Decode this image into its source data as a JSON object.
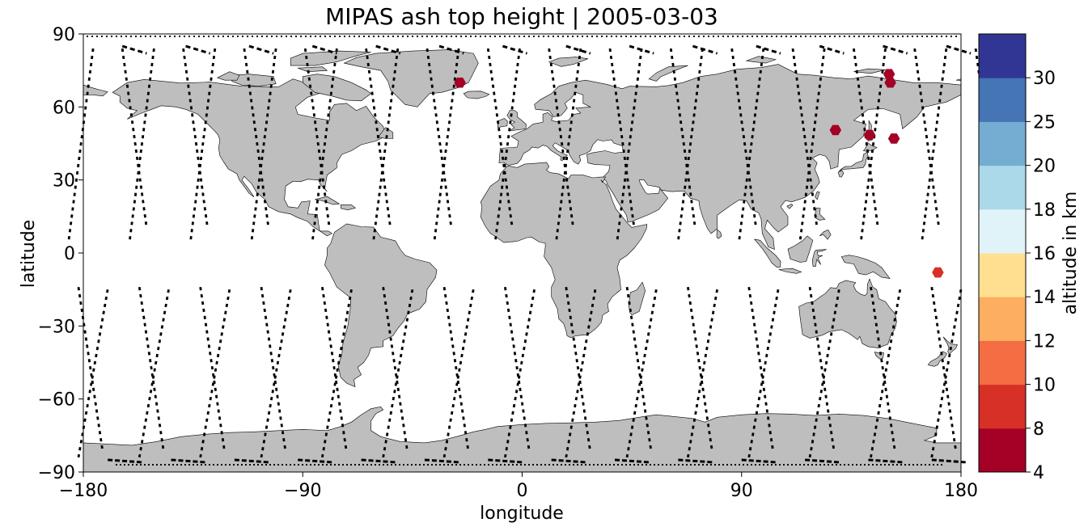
{
  "title": "MIPAS ash top height | 2005-03-03",
  "map": {
    "projection": "plate-carree",
    "land_color": "#bebebe",
    "coast_color": "#000000",
    "orbit_color": "#000000",
    "xlabel": "longitude",
    "ylabel": "latitude",
    "xlim": [
      -180,
      180
    ],
    "ylim": [
      -90,
      90
    ],
    "xticks": [
      -180,
      -90,
      0,
      90,
      180
    ],
    "yticks": [
      90,
      60,
      30,
      0,
      -30,
      -60,
      -90
    ]
  },
  "colorbar": {
    "label": "altitude in km",
    "bounds": [
      4,
      8,
      10,
      12,
      14,
      16,
      18,
      20,
      25,
      30
    ],
    "colors": [
      "#a50026",
      "#d73027",
      "#f46d43",
      "#fdae61",
      "#fee090",
      "#e0f3f8",
      "#abd9e9",
      "#74add1",
      "#4575b4",
      "#313695"
    ]
  },
  "chart_data": {
    "type": "scatter",
    "title": "MIPAS ash top height | 2005-03-03",
    "xlabel": "longitude",
    "ylabel": "latitude",
    "xlim": [
      -180,
      180
    ],
    "ylim": [
      -90,
      90
    ],
    "color_label": "altitude in km",
    "points": [
      {
        "lon": -25.5,
        "lat": 70.0,
        "altitude": 6
      },
      {
        "lon": 128.5,
        "lat": 50.5,
        "altitude": 6
      },
      {
        "lon": 142.5,
        "lat": 48.5,
        "altitude": 6
      },
      {
        "lon": 150.5,
        "lat": 73.5,
        "altitude": 6
      },
      {
        "lon": 151.0,
        "lat": 70.0,
        "altitude": 6
      },
      {
        "lon": 152.5,
        "lat": 47.0,
        "altitude": 6
      },
      {
        "lon": 170.5,
        "lat": -8.0,
        "altitude": 9
      }
    ]
  }
}
